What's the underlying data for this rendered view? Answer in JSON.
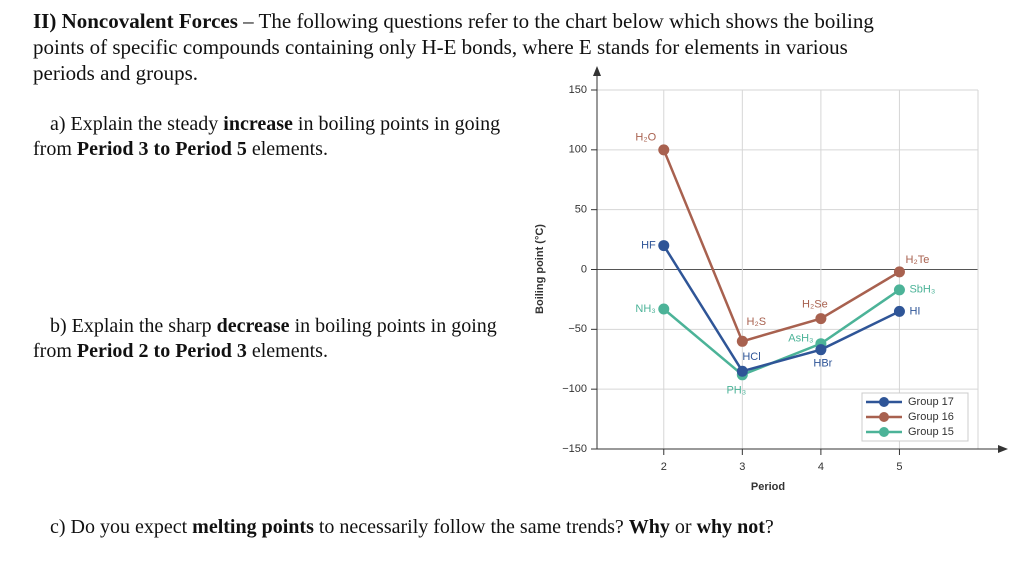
{
  "header": {
    "title": "II) Noncovalent Forces",
    "text": " – The following questions refer to the chart below which shows the boiling points of specific compounds containing only H-E bonds, where E stands for elements in various periods and groups."
  },
  "questions": [
    {
      "parts": [
        "a) Explain the steady ",
        "increase",
        " in boiling points in going from ",
        "Period 3 to Period 5",
        " elements."
      ]
    },
    {
      "parts": [
        "b) Explain the sharp ",
        "decrease",
        " in boiling points in going from ",
        "Period 2 to Period 3",
        " elements."
      ]
    },
    {
      "parts": [
        "c) Do you expect ",
        "melting points",
        " to necessarily follow the same trends? ",
        "Why",
        " or ",
        "why not",
        "?"
      ]
    }
  ],
  "chart_data": {
    "type": "line",
    "x_label": "Period",
    "y_label": "Boiling point (°C)",
    "x": [
      2,
      3,
      4,
      5
    ],
    "series": [
      {
        "name": "Group 17",
        "color": "#2f5597",
        "values": [
          20,
          -85,
          -67,
          -35
        ],
        "point_labels": [
          "HF",
          "HCl",
          "HBr",
          "HI"
        ]
      },
      {
        "name": "Group 16",
        "color": "#a8614f",
        "values": [
          100,
          -60,
          -41,
          -2
        ],
        "point_labels": [
          "H₂O",
          "H₂S",
          "H₂Se",
          "H₂Te"
        ]
      },
      {
        "name": "Group 15",
        "color": "#4cb398",
        "values": [
          -33,
          -88,
          -62,
          -17
        ],
        "point_labels": [
          "NH₃",
          "PH₃",
          "AsH₃",
          "SbH₃"
        ]
      }
    ],
    "xlim": [
      1.15,
      6
    ],
    "xticks": [
      2,
      3,
      4,
      5
    ],
    "ylim": [
      -150,
      150
    ],
    "yticks": [
      {
        "value": -150,
        "label": "−150"
      },
      {
        "value": -100,
        "label": "−100"
      },
      {
        "value": -50,
        "label": "−50"
      },
      0,
      50,
      100,
      150
    ],
    "grid": true,
    "legend": "lower right"
  }
}
